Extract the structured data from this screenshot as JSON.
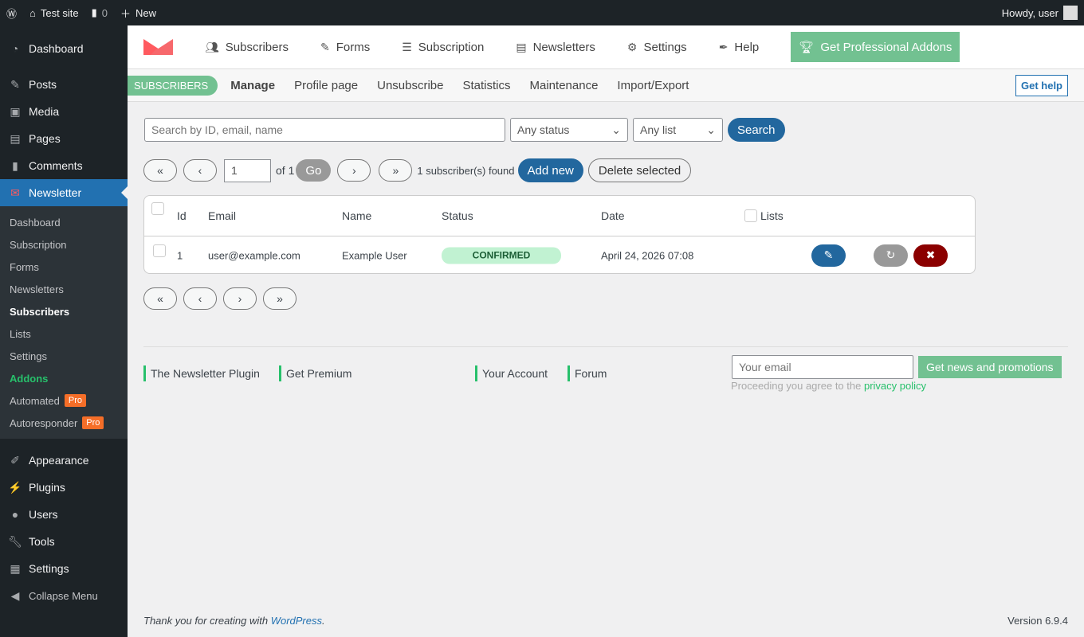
{
  "admin_bar": {
    "site": "Test site",
    "comments": "0",
    "new": "New",
    "howdy": "Howdy, user"
  },
  "sidebar": {
    "items": [
      {
        "label": "Dashboard",
        "icon": "dashboard-icon"
      },
      {
        "label": "Posts",
        "icon": "pin-icon"
      },
      {
        "label": "Media",
        "icon": "media-icon"
      },
      {
        "label": "Pages",
        "icon": "pages-icon"
      },
      {
        "label": "Comments",
        "icon": "comment-icon"
      },
      {
        "label": "Newsletter",
        "icon": "newsletter-icon"
      }
    ],
    "submenu": [
      "Dashboard",
      "Subscription",
      "Forms",
      "Newsletters",
      "Subscribers",
      "Lists",
      "Settings",
      "Addons",
      "Automated",
      "Autoresponder"
    ],
    "pro": "Pro",
    "bottom_items": [
      {
        "label": "Appearance"
      },
      {
        "label": "Plugins"
      },
      {
        "label": "Users"
      },
      {
        "label": "Tools"
      },
      {
        "label": "Settings"
      },
      {
        "label": "Collapse Menu"
      }
    ]
  },
  "topnav": {
    "items": [
      "Subscribers",
      "Forms",
      "Subscription",
      "Newsletters",
      "Settings",
      "Help"
    ],
    "pro": "Get Professional Addons"
  },
  "subnav": {
    "badge": "SUBSCRIBERS",
    "items": [
      "Manage",
      "Profile page",
      "Unsubscribe",
      "Statistics",
      "Maintenance",
      "Import/Export"
    ],
    "help": "Get help"
  },
  "filters": {
    "search_placeholder": "Search by ID, email, name",
    "status": "Any status",
    "list": "Any list",
    "search": "Search"
  },
  "pager": {
    "first": "«",
    "prev": "‹",
    "next": "›",
    "last": "»",
    "page": "1",
    "of": "of 1",
    "go": "Go",
    "found": "1 subscriber(s) found",
    "add": "Add new",
    "delete": "Delete selected"
  },
  "table": {
    "headers": [
      "Id",
      "Email",
      "Name",
      "Status",
      "Date",
      "Lists"
    ],
    "rows": [
      {
        "id": "1",
        "email": "user@example.com",
        "name": "Example User",
        "status": "CONFIRMED",
        "date": "April 24, 2026 07:08"
      }
    ]
  },
  "footer": {
    "links": [
      "The Newsletter Plugin",
      "Get Premium",
      "Your Account",
      "Forum"
    ],
    "email_placeholder": "Your email",
    "subscribe": "Get news and promotions",
    "privacy_text": "Proceeding you agree to the",
    "privacy_link": "privacy policy"
  },
  "wp_footer": {
    "thanks": "Thank you for creating with",
    "wp": "WordPress",
    "version": "Version 6.9.4"
  },
  "colors": {
    "accent": "#2271b1",
    "green": "#72c191",
    "danger": "#8b0000"
  }
}
